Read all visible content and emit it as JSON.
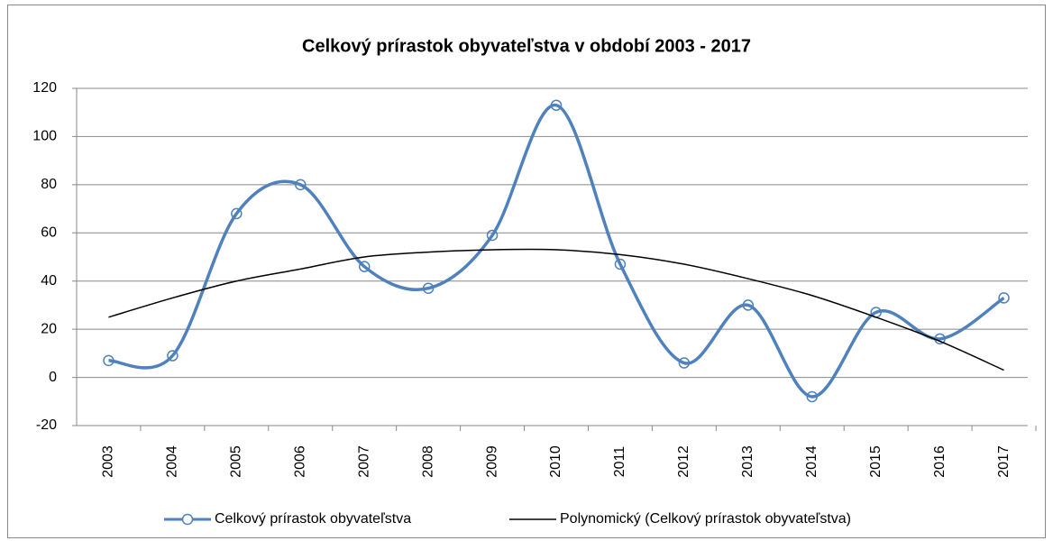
{
  "chart_data": {
    "type": "line",
    "title": "Celkový prírastok obyvateľstva v období 2003 - 2017",
    "categories": [
      "2003",
      "2004",
      "2005",
      "2006",
      "2007",
      "2008",
      "2009",
      "2010",
      "2011",
      "2012",
      "2013",
      "2014",
      "2015",
      "2016",
      "2017"
    ],
    "series": [
      {
        "name": "Celkový prírastok obyvateľstva",
        "color": "#4f81bd",
        "smooth": true,
        "markers": true,
        "values": [
          7,
          9,
          68,
          80,
          46,
          37,
          59,
          113,
          47,
          6,
          30,
          -8,
          27,
          16,
          33
        ]
      },
      {
        "name": "Polynomický (Celkový prírastok obyvateľstva)",
        "color": "#000000",
        "smooth": true,
        "markers": false,
        "values": [
          25,
          33,
          40,
          45,
          50,
          52,
          53,
          53,
          51,
          47,
          41,
          34,
          25,
          15,
          3
        ]
      }
    ],
    "ylim": [
      -20,
      120
    ],
    "yticks": [
      -20,
      0,
      20,
      40,
      60,
      80,
      100,
      120
    ],
    "grid": true,
    "legend": "bottom"
  }
}
